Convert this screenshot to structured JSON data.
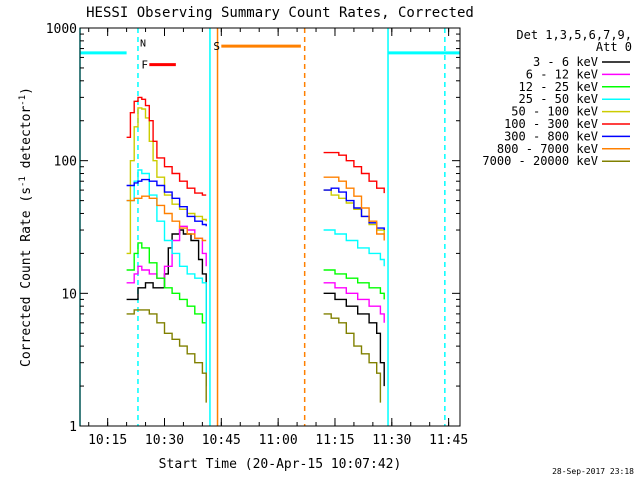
{
  "chart_data": {
    "type": "line",
    "title": "HESSI Observing Summary Count Rates, Corrected",
    "xlabel": "Start Time (20-Apr-15 10:07:42)",
    "ylabel": "Corrected Count Rate (s⁻¹ detector⁻¹)",
    "ylabel_main": "Corrected Count Rate (s",
    "ylabel_sup1": "-1",
    "ylabel_mid": " detector",
    "ylabel_sup2": "-1",
    "ylabel_end": ")",
    "y_scale": "log",
    "ylim": [
      1,
      1000
    ],
    "xlim": [
      "10:07:42",
      "11:48:00"
    ],
    "x_ticks": [
      "10:15",
      "10:30",
      "10:45",
      "11:00",
      "11:15",
      "11:30",
      "11:45"
    ],
    "y_ticks": [
      "1",
      "10",
      "100",
      "1000"
    ],
    "legend_header": [
      "Det 1,3,5,6,7,9,",
      "Att 0"
    ],
    "legend_position": "right",
    "timestamp": "28-Sep-2017 23:18",
    "series": [
      {
        "name": "3 - 6 keV",
        "color": "#000000",
        "segments": [
          [
            [
              "10:20",
              9
            ],
            [
              "10:23",
              11
            ],
            [
              "10:25",
              12
            ],
            [
              "10:27",
              11
            ],
            [
              "10:30",
              14
            ],
            [
              "10:31",
              22
            ],
            [
              "10:32",
              28
            ],
            [
              "10:34",
              30
            ],
            [
              "10:35",
              28
            ],
            [
              "10:37",
              25
            ],
            [
              "10:39",
              18
            ],
            [
              "10:40",
              14
            ],
            [
              "10:41",
              2
            ]
          ],
          [
            [
              "11:12",
              10
            ],
            [
              "11:15",
              9
            ],
            [
              "11:18",
              8
            ],
            [
              "11:21",
              7
            ],
            [
              "11:24",
              6
            ],
            [
              "11:26",
              5
            ],
            [
              "11:27",
              3
            ],
            [
              "11:28",
              2
            ]
          ]
        ]
      },
      {
        "name": "6 - 12 keV",
        "color": "#ff00ff",
        "segments": [
          [
            [
              "10:20",
              12
            ],
            [
              "10:22",
              14
            ],
            [
              "10:23",
              16
            ],
            [
              "10:24",
              15
            ],
            [
              "10:26",
              14
            ],
            [
              "10:28",
              13
            ],
            [
              "10:30",
              16
            ],
            [
              "10:32",
              25
            ],
            [
              "10:34",
              32
            ],
            [
              "10:36",
              30
            ],
            [
              "10:38",
              26
            ],
            [
              "10:40",
              20
            ],
            [
              "10:41",
              16
            ]
          ],
          [
            [
              "11:12",
              12
            ],
            [
              "11:15",
              11
            ],
            [
              "11:18",
              10
            ],
            [
              "11:21",
              9
            ],
            [
              "11:24",
              8
            ],
            [
              "11:27",
              7
            ],
            [
              "11:28",
              6
            ]
          ]
        ]
      },
      {
        "name": "12 - 25 keV",
        "color": "#00ff00",
        "segments": [
          [
            [
              "10:20",
              15
            ],
            [
              "10:22",
              20
            ],
            [
              "10:23",
              24
            ],
            [
              "10:24",
              22
            ],
            [
              "10:26",
              17
            ],
            [
              "10:28",
              13
            ],
            [
              "10:30",
              11
            ],
            [
              "10:32",
              10
            ],
            [
              "10:34",
              9
            ],
            [
              "10:36",
              8
            ],
            [
              "10:38",
              7
            ],
            [
              "10:40",
              6
            ],
            [
              "10:41",
              3
            ]
          ],
          [
            [
              "11:12",
              15
            ],
            [
              "11:15",
              14
            ],
            [
              "11:18",
              13
            ],
            [
              "11:21",
              12
            ],
            [
              "11:24",
              11
            ],
            [
              "11:27",
              10
            ],
            [
              "11:28",
              9
            ]
          ]
        ]
      },
      {
        "name": "25 - 50 keV",
        "color": "#00ffff",
        "segments": [
          [
            [
              "10:20",
              50
            ],
            [
              "10:22",
              70
            ],
            [
              "10:23",
              85
            ],
            [
              "10:24",
              80
            ],
            [
              "10:26",
              55
            ],
            [
              "10:28",
              35
            ],
            [
              "10:30",
              25
            ],
            [
              "10:32",
              20
            ],
            [
              "10:34",
              16
            ],
            [
              "10:36",
              14
            ],
            [
              "10:38",
              13
            ],
            [
              "10:40",
              12
            ],
            [
              "10:41",
              2
            ]
          ],
          [
            [
              "11:12",
              30
            ],
            [
              "11:15",
              28
            ],
            [
              "11:18",
              25
            ],
            [
              "11:21",
              22
            ],
            [
              "11:24",
              20
            ],
            [
              "11:27",
              18
            ],
            [
              "11:28",
              16
            ]
          ]
        ]
      },
      {
        "name": "50 - 100 keV",
        "color": "#cccc00",
        "segments": [
          [
            [
              "10:20",
              20
            ],
            [
              "10:21",
              100
            ],
            [
              "10:22",
              180
            ],
            [
              "10:23",
              250
            ],
            [
              "10:24",
              245
            ],
            [
              "10:25",
              210
            ],
            [
              "10:26",
              140
            ],
            [
              "10:27",
              100
            ],
            [
              "10:28",
              75
            ],
            [
              "10:30",
              55
            ],
            [
              "10:32",
              47
            ],
            [
              "10:34",
              43
            ],
            [
              "10:36",
              40
            ],
            [
              "10:38",
              38
            ],
            [
              "10:40",
              36
            ],
            [
              "10:41",
              35
            ]
          ],
          [
            [
              "11:12",
              60
            ],
            [
              "11:14",
              55
            ],
            [
              "11:16",
              52
            ],
            [
              "11:18",
              48
            ],
            [
              "11:20",
              43
            ],
            [
              "11:22",
              38
            ],
            [
              "11:24",
              33
            ],
            [
              "11:26",
              30
            ],
            [
              "11:28",
              28
            ]
          ]
        ]
      },
      {
        "name": "100 - 300 keV",
        "color": "#ff0000",
        "segments": [
          [
            [
              "10:20",
              150
            ],
            [
              "10:21",
              230
            ],
            [
              "10:22",
              280
            ],
            [
              "10:23",
              300
            ],
            [
              "10:24",
              290
            ],
            [
              "10:25",
              260
            ],
            [
              "10:26",
              200
            ],
            [
              "10:27",
              140
            ],
            [
              "10:28",
              105
            ],
            [
              "10:30",
              90
            ],
            [
              "10:32",
              80
            ],
            [
              "10:34",
              70
            ],
            [
              "10:36",
              62
            ],
            [
              "10:38",
              57
            ],
            [
              "10:40",
              55
            ],
            [
              "10:41",
              55
            ]
          ],
          [
            [
              "11:12",
              115
            ],
            [
              "11:14",
              115
            ],
            [
              "11:16",
              110
            ],
            [
              "11:18",
              100
            ],
            [
              "11:20",
              90
            ],
            [
              "11:22",
              80
            ],
            [
              "11:24",
              70
            ],
            [
              "11:26",
              62
            ],
            [
              "11:28",
              57
            ]
          ]
        ]
      },
      {
        "name": "300 - 800 keV",
        "color": "#0000ff",
        "segments": [
          [
            [
              "10:20",
              65
            ],
            [
              "10:22",
              68
            ],
            [
              "10:23",
              70
            ],
            [
              "10:24",
              72
            ],
            [
              "10:26",
              70
            ],
            [
              "10:28",
              65
            ],
            [
              "10:30",
              58
            ],
            [
              "10:32",
              52
            ],
            [
              "10:34",
              45
            ],
            [
              "10:36",
              38
            ],
            [
              "10:38",
              35
            ],
            [
              "10:40",
              33
            ],
            [
              "10:41",
              32
            ]
          ],
          [
            [
              "11:12",
              60
            ],
            [
              "11:14",
              62
            ],
            [
              "11:16",
              58
            ],
            [
              "11:18",
              50
            ],
            [
              "11:20",
              44
            ],
            [
              "11:22",
              38
            ],
            [
              "11:24",
              34
            ],
            [
              "11:26",
              31
            ],
            [
              "11:28",
              30
            ]
          ]
        ]
      },
      {
        "name": "800 - 7000 keV",
        "color": "#ff8000",
        "segments": [
          [
            [
              "10:20",
              50
            ],
            [
              "10:22",
              52
            ],
            [
              "10:24",
              54
            ],
            [
              "10:26",
              52
            ],
            [
              "10:28",
              46
            ],
            [
              "10:30",
              40
            ],
            [
              "10:32",
              35
            ],
            [
              "10:34",
              31
            ],
            [
              "10:36",
              28
            ],
            [
              "10:38",
              26
            ],
            [
              "10:40",
              25
            ],
            [
              "10:41",
              25
            ]
          ],
          [
            [
              "11:12",
              75
            ],
            [
              "11:14",
              75
            ],
            [
              "11:16",
              70
            ],
            [
              "11:18",
              62
            ],
            [
              "11:20",
              54
            ],
            [
              "11:22",
              44
            ],
            [
              "11:24",
              35
            ],
            [
              "11:26",
              28
            ],
            [
              "11:28",
              25
            ]
          ]
        ]
      },
      {
        "name": "7000 - 20000 keV",
        "color": "#808000",
        "segments": [
          [
            [
              "10:20",
              7
            ],
            [
              "10:22",
              7.5
            ],
            [
              "10:24",
              7.5
            ],
            [
              "10:26",
              7
            ],
            [
              "10:28",
              6
            ],
            [
              "10:30",
              5
            ],
            [
              "10:32",
              4.5
            ],
            [
              "10:34",
              4
            ],
            [
              "10:36",
              3.5
            ],
            [
              "10:38",
              3
            ],
            [
              "10:40",
              2.5
            ],
            [
              "10:41",
              1.5
            ]
          ],
          [
            [
              "11:12",
              7
            ],
            [
              "11:14",
              6.5
            ],
            [
              "11:16",
              6
            ],
            [
              "11:18",
              5
            ],
            [
              "11:20",
              4
            ],
            [
              "11:22",
              3.5
            ],
            [
              "11:24",
              3
            ],
            [
              "11:26",
              2.5
            ],
            [
              "11:27",
              1.5
            ]
          ]
        ]
      }
    ],
    "annotations": {
      "night_bars": [
        {
          "label": "",
          "color": "#00ffff",
          "start": "10:07:42",
          "end": "10:20",
          "value": 650
        },
        {
          "label": "",
          "color": "#00ffff",
          "start": "11:29",
          "end": "11:48",
          "value": 650
        }
      ],
      "flag_bars": [
        {
          "label": "F",
          "color": "#ff0000",
          "start": "10:26",
          "end": "10:33",
          "value": 530
        },
        {
          "label": "S",
          "color": "#ff8000",
          "start": "10:45",
          "end": "11:06",
          "value": 730
        }
      ],
      "markers": [
        {
          "label": "N",
          "color": "#00ffff",
          "time": "10:23",
          "value": 700
        }
      ],
      "vlines": [
        {
          "time": "10:07:42",
          "color": "#00ffff",
          "style": "solid"
        },
        {
          "time": "10:23",
          "color": "#00ffff",
          "style": "dashed"
        },
        {
          "time": "10:42",
          "color": "#00ffff",
          "style": "solid"
        },
        {
          "time": "10:44",
          "color": "#ff8000",
          "style": "solid"
        },
        {
          "time": "11:07",
          "color": "#ff8000",
          "style": "dashed"
        },
        {
          "time": "11:29",
          "color": "#00ffff",
          "style": "solid"
        },
        {
          "time": "11:44",
          "color": "#00ffff",
          "style": "dashed"
        }
      ]
    }
  }
}
